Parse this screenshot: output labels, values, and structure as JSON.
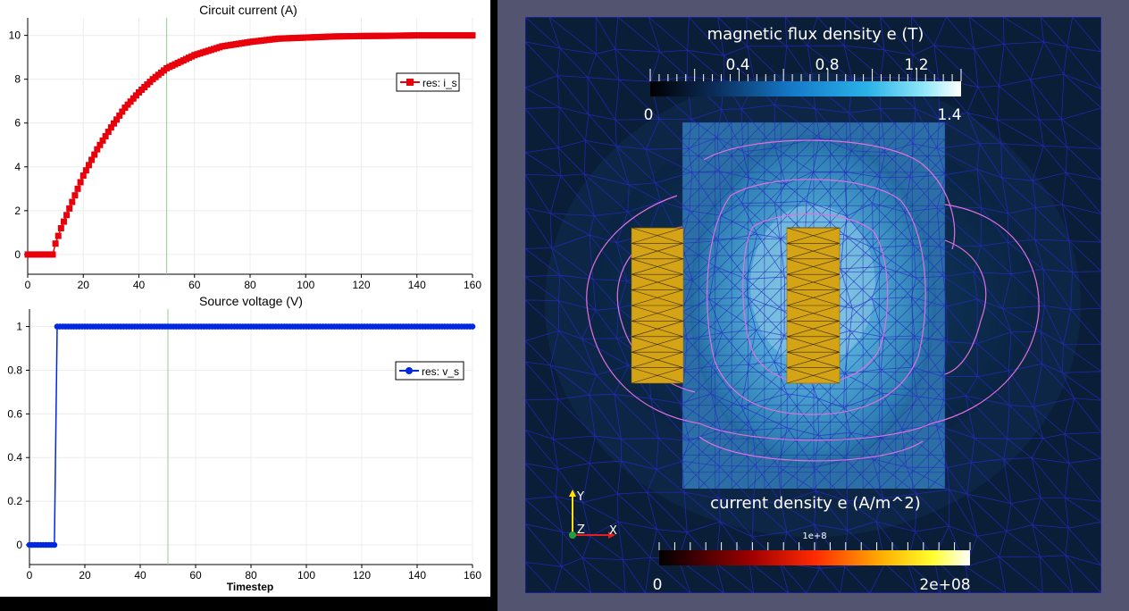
{
  "left_panel": {
    "current_plot": {
      "title": "Circuit current (A)",
      "legend": "res: i_s"
    },
    "voltage_plot": {
      "title": "Source voltage (V)",
      "legend": "res: v_s",
      "xlabel": "Timestep"
    }
  },
  "right_panel": {
    "flux_legend": {
      "title": "magnetic flux density e (T)",
      "min_label": "0",
      "max_label": "1.4",
      "tick_labels": [
        "0.4",
        "0.8",
        "1.2"
      ]
    },
    "current_legend": {
      "title": "current density e (A/m^2)",
      "min_label": "0",
      "max_label": "2e+08",
      "exponent_label": "1e+8"
    },
    "axes_triad": {
      "y": "Y",
      "z": "Z",
      "x": "X"
    }
  },
  "colors": {
    "current_series": "#e8000b",
    "voltage_series": "#0028e0",
    "time_marker": "#8fd08f",
    "viewport_bg": "#525470",
    "coil": "#d4a416"
  },
  "chart_data": [
    {
      "type": "line",
      "title": "Circuit current (A)",
      "xlabel": "",
      "ylabel": "",
      "xlim": [
        0,
        160
      ],
      "ylim": [
        -0.9,
        10.8
      ],
      "x_ticks": [
        0,
        20,
        40,
        60,
        80,
        100,
        120,
        140,
        160
      ],
      "y_ticks": [
        0,
        2,
        4,
        6,
        8,
        10
      ],
      "grid": true,
      "legend_position": "right",
      "time_marker_x": 50,
      "series": [
        {
          "name": "res: i_s",
          "marker": "square",
          "x": [
            0,
            5,
            9,
            10,
            12,
            15,
            20,
            25,
            30,
            35,
            40,
            45,
            50,
            60,
            70,
            80,
            90,
            100,
            110,
            120,
            130,
            140,
            150,
            160
          ],
          "y": [
            0,
            0,
            0,
            0.5,
            1.2,
            2.1,
            3.6,
            4.8,
            5.8,
            6.7,
            7.4,
            8.0,
            8.5,
            9.1,
            9.5,
            9.7,
            9.85,
            9.9,
            9.95,
            9.97,
            9.98,
            10.0,
            10.0,
            10.0
          ]
        }
      ]
    },
    {
      "type": "line",
      "title": "Source voltage (V)",
      "xlabel": "Timestep",
      "ylabel": "",
      "xlim": [
        0,
        160
      ],
      "ylim": [
        -0.09,
        1.08
      ],
      "x_ticks": [
        0,
        20,
        40,
        60,
        80,
        100,
        120,
        140,
        160
      ],
      "y_ticks": [
        0,
        0.2,
        0.4,
        0.6,
        0.8,
        1
      ],
      "grid": true,
      "legend_position": "right",
      "time_marker_x": 50,
      "series": [
        {
          "name": "res: v_s",
          "marker": "circle",
          "x": [
            0,
            5,
            9,
            10,
            15,
            20,
            40,
            60,
            80,
            100,
            120,
            140,
            160
          ],
          "y": [
            0,
            0,
            0,
            1,
            1,
            1,
            1,
            1,
            1,
            1,
            1,
            1,
            1
          ]
        }
      ]
    }
  ]
}
